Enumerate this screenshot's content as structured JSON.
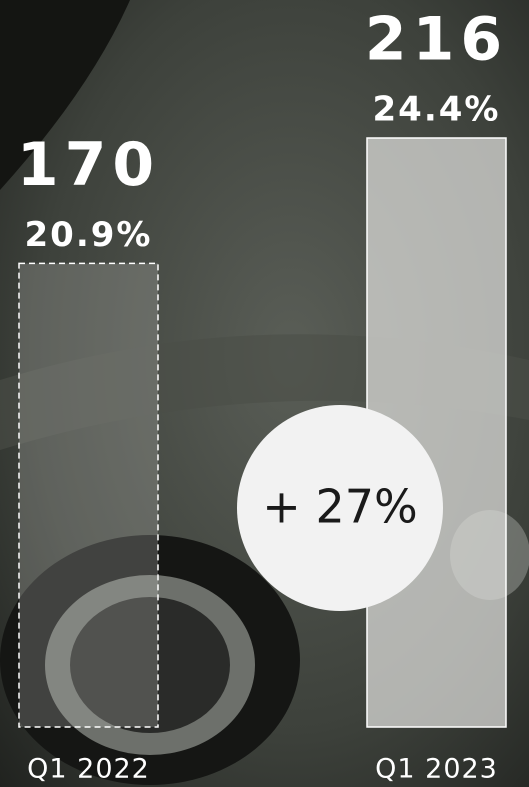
{
  "chart_data": {
    "type": "bar",
    "categories": [
      "Q1 2022",
      "Q1 2023"
    ],
    "values": [
      170,
      216
    ],
    "share_labels": [
      "20.9%",
      "24.4%"
    ],
    "annotation": "+ 27%"
  }
}
